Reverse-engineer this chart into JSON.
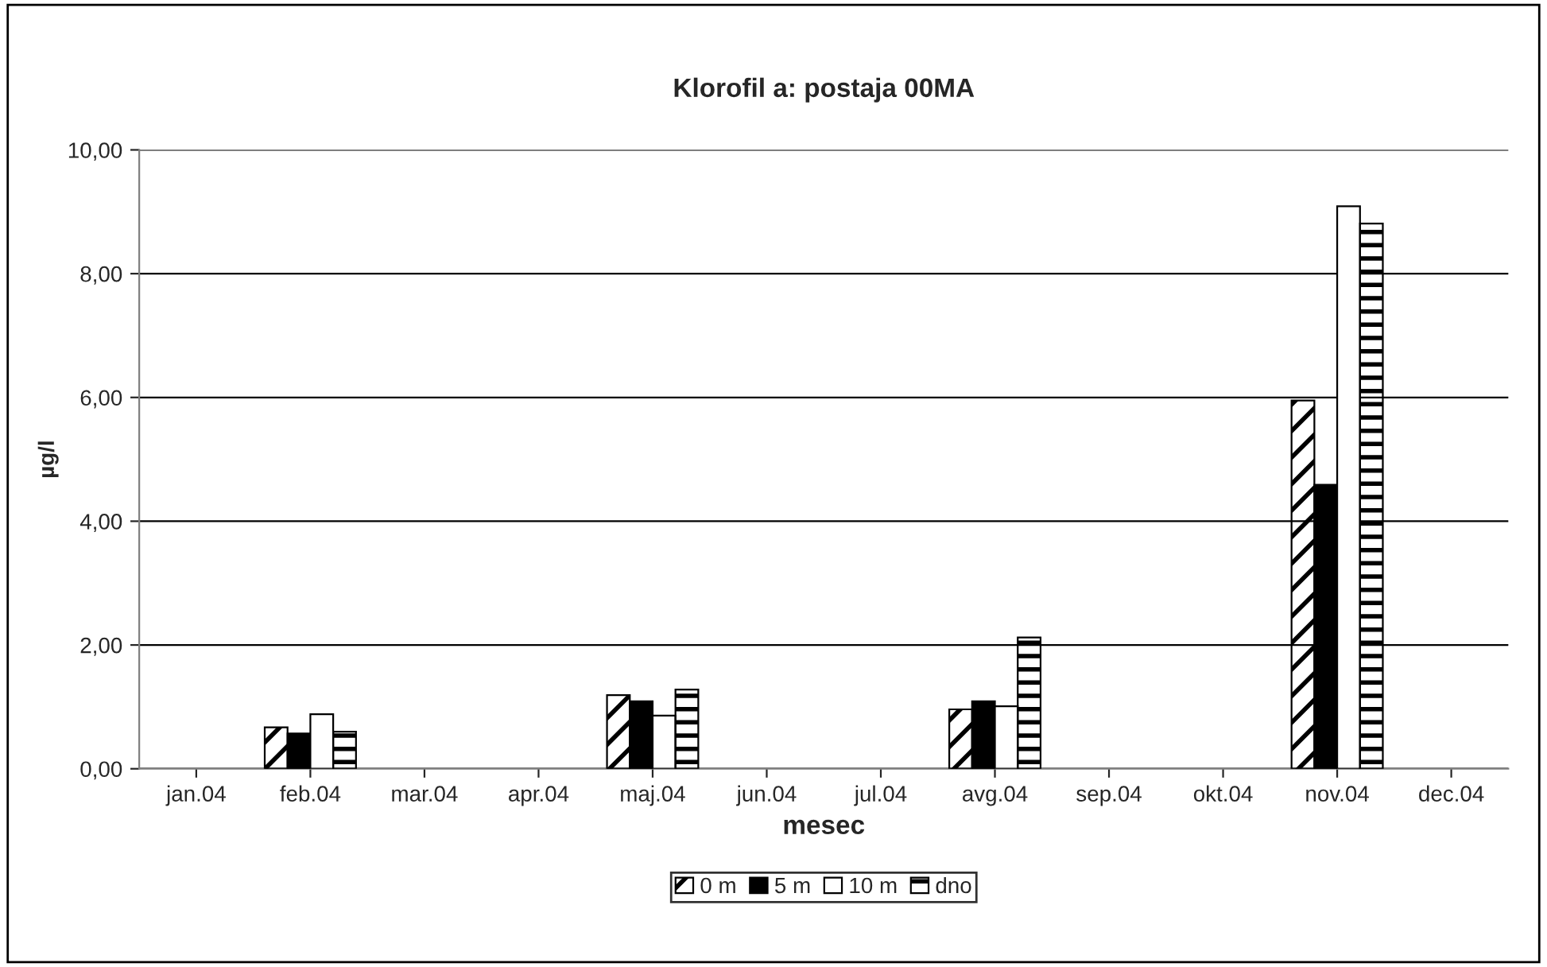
{
  "chart_data": {
    "type": "bar",
    "title": "Klorofil a: postaja 00MA",
    "xlabel": "mesec",
    "ylabel": "µg/l",
    "categories": [
      "jan.04",
      "feb.04",
      "mar.04",
      "apr.04",
      "maj.04",
      "jun.04",
      "jul.04",
      "avg.04",
      "sep.04",
      "okt.04",
      "nov.04",
      "dec.04"
    ],
    "series": [
      {
        "name": "0 m",
        "color": "#000000",
        "values": [
          null,
          0.67,
          null,
          null,
          1.19,
          null,
          null,
          0.96,
          null,
          null,
          5.95,
          null
        ]
      },
      {
        "name": "5 m",
        "color": "#000000",
        "values": [
          null,
          0.57,
          null,
          null,
          1.09,
          null,
          null,
          1.09,
          null,
          null,
          4.59,
          null
        ]
      },
      {
        "name": "10 m",
        "color": "#ffffff",
        "values": [
          null,
          0.88,
          null,
          null,
          0.86,
          null,
          null,
          1.01,
          null,
          null,
          9.09,
          null
        ]
      },
      {
        "name": "dno",
        "color": "#000000",
        "values": [
          null,
          0.6,
          null,
          null,
          1.28,
          null,
          null,
          2.12,
          null,
          null,
          8.81,
          null
        ]
      }
    ],
    "ylim": [
      0,
      10
    ],
    "yticks": [
      {
        "value": 0,
        "label": "0,00"
      },
      {
        "value": 2,
        "label": "2,00"
      },
      {
        "value": 4,
        "label": "4,00"
      },
      {
        "value": 6,
        "label": "6,00"
      },
      {
        "value": 8,
        "label": "8,00"
      },
      {
        "value": 10,
        "label": "10,00"
      }
    ],
    "grid": "y",
    "legend": "bottom"
  }
}
